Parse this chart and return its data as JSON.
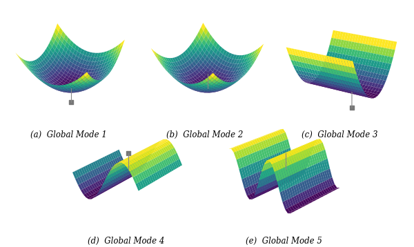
{
  "background_color": "#ffffff",
  "colormap": "viridis",
  "labels": [
    "(a)  Global Mode 1",
    "(b)  Global Mode 2",
    "(c)  Global Mode 3",
    "(d)  Global Mode 4",
    "(e)  Global Mode 5"
  ],
  "label_fontsize": 8.5,
  "grid_n": 25,
  "marker_color": "#777777",
  "marker_size": 18,
  "line_color": "#888888",
  "line_width": 0.8,
  "modes": [
    {
      "shape": "bowl",
      "ix": 0.0,
      "iy": 0.0,
      "elev": 28,
      "azim": -60,
      "impactor_up": false
    },
    {
      "shape": "bowl_tilt",
      "ix": 0.0,
      "iy": 0.0,
      "elev": 28,
      "azim": -50,
      "impactor_up": true
    },
    {
      "shape": "saddle",
      "ix": 0.3,
      "iy": 0.0,
      "elev": 18,
      "azim": -55,
      "impactor_up": false
    },
    {
      "shape": "swave",
      "ix": 0.0,
      "iy": 0.0,
      "elev": 22,
      "azim": -55,
      "impactor_up": true
    },
    {
      "shape": "dwave",
      "ix": 0.0,
      "iy": 0.0,
      "elev": 22,
      "azim": -50,
      "impactor_up": true
    }
  ]
}
